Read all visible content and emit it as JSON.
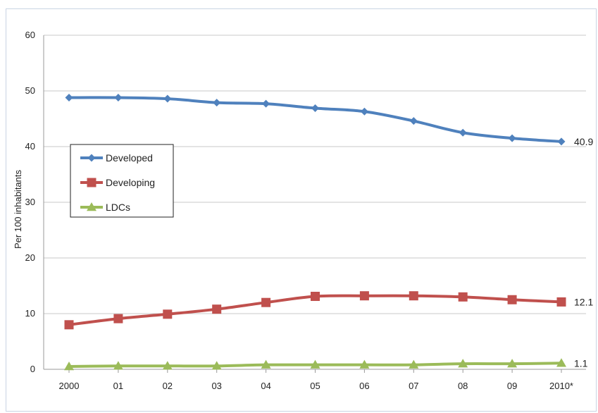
{
  "chart_data": {
    "type": "line",
    "title": "",
    "xlabel": "",
    "ylabel": "Per 100 inhabitants",
    "categories": [
      "2000",
      "01",
      "02",
      "03",
      "04",
      "05",
      "06",
      "07",
      "08",
      "09",
      "2010*"
    ],
    "ylim": [
      0,
      60
    ],
    "yticks": [
      0,
      10,
      20,
      30,
      40,
      50,
      60
    ],
    "grid": "horizontal",
    "legend_position": "left",
    "series": [
      {
        "name": "Developed",
        "color": "#4f81bd",
        "marker": "diamond",
        "values": [
          48.8,
          48.8,
          48.6,
          47.9,
          47.7,
          46.9,
          46.3,
          44.6,
          42.5,
          41.5,
          40.9
        ],
        "end_label": "40.9"
      },
      {
        "name": "Developing",
        "color": "#c0504d",
        "marker": "square",
        "values": [
          8.0,
          9.1,
          9.9,
          10.8,
          12.0,
          13.1,
          13.2,
          13.2,
          13.0,
          12.5,
          12.1
        ],
        "end_label": "12.1"
      },
      {
        "name": "LDCs",
        "color": "#9bbb59",
        "marker": "triangle",
        "values": [
          0.5,
          0.6,
          0.6,
          0.6,
          0.8,
          0.8,
          0.8,
          0.8,
          1.0,
          1.0,
          1.1
        ],
        "end_label": "1.1"
      }
    ]
  }
}
